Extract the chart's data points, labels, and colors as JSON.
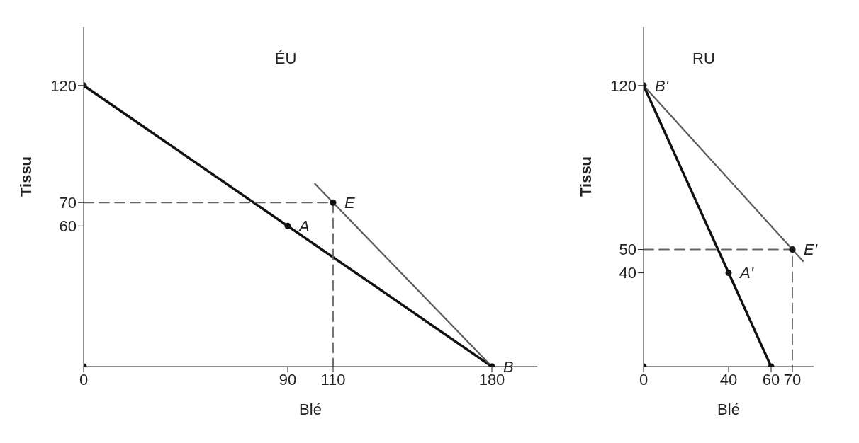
{
  "chart_data": [
    {
      "type": "line",
      "title": "ÉU",
      "xlabel": "Blé",
      "ylabel": "Tissu",
      "xlim": [
        0,
        200
      ],
      "ylim": [
        0,
        145
      ],
      "xticks": [
        0,
        90,
        110,
        180
      ],
      "yticks": [
        60,
        70,
        120
      ],
      "series": [
        {
          "color": "#111111",
          "x": [
            0,
            180
          ],
          "values": [
            120,
            0
          ],
          "line_style": "solid",
          "marker": "none"
        },
        {
          "color": "#5a5a5a",
          "x": [
            102,
            180
          ],
          "values": [
            78,
            0
          ],
          "line_style": "solid",
          "marker": "none"
        },
        {
          "color": "#666666",
          "x": [
            0,
            110,
            110
          ],
          "values": [
            70,
            70,
            0
          ],
          "line_style": "dashed",
          "marker": "none"
        },
        {
          "type": "scatter",
          "color": "#111111",
          "x": [
            0,
            0,
            90,
            110,
            180
          ],
          "values": [
            0,
            120,
            60,
            70,
            0
          ],
          "marker": "circle"
        }
      ],
      "annotations": [
        {
          "text": "A",
          "x": 90,
          "y": 60
        },
        {
          "text": "E",
          "x": 110,
          "y": 70
        },
        {
          "text": "B",
          "x": 180,
          "y": 0
        }
      ]
    },
    {
      "type": "line",
      "title": "RU",
      "xlabel": "Blé",
      "ylabel": "Tissu",
      "xlim": [
        0,
        80
      ],
      "ylim": [
        0,
        145
      ],
      "xticks": [
        0,
        40,
        60,
        70
      ],
      "yticks": [
        40,
        50,
        120
      ],
      "series": [
        {
          "color": "#111111",
          "x": [
            0,
            60
          ],
          "values": [
            120,
            0
          ],
          "line_style": "solid",
          "marker": "none"
        },
        {
          "color": "#5a5a5a",
          "x": [
            0,
            75
          ],
          "values": [
            120,
            45
          ],
          "line_style": "solid",
          "marker": "none"
        },
        {
          "color": "#666666",
          "x": [
            0,
            70,
            70
          ],
          "values": [
            50,
            50,
            0
          ],
          "line_style": "dashed",
          "marker": "none"
        },
        {
          "type": "scatter",
          "color": "#111111",
          "x": [
            0,
            0,
            40,
            60,
            70
          ],
          "values": [
            0,
            120,
            40,
            0,
            50
          ],
          "marker": "circle"
        }
      ],
      "annotations": [
        {
          "text": "B'",
          "x": 0,
          "y": 120
        },
        {
          "text": "A'",
          "x": 40,
          "y": 40
        },
        {
          "text": "E'",
          "x": 70,
          "y": 50
        }
      ]
    }
  ]
}
